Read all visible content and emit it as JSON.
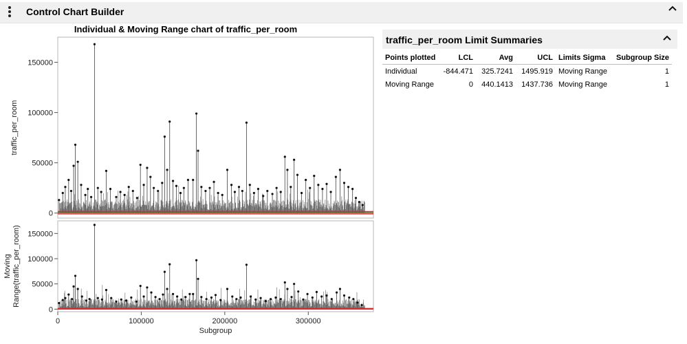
{
  "app": {
    "title": "Control Chart Builder",
    "menu_icon": "vertical-ellipsis-icon",
    "collapse_icon": "chevron-up-icon"
  },
  "chart_data": {
    "type": "line",
    "title": "Individual & Moving Range chart of traffic_per_room",
    "xlabel": "Subgroup",
    "xlim": [
      0,
      378000
    ],
    "xticks": [
      0,
      100000,
      200000,
      300000
    ],
    "panels": [
      {
        "name": "Individual",
        "ylabel": "traffic_per_room",
        "ylim": [
          -5000,
          175000
        ],
        "yticks": [
          0,
          50000,
          100000,
          150000
        ],
        "limits": {
          "lcl": -844.471,
          "avg": 325.7241,
          "ucl": 1495.919
        },
        "spikes": [
          {
            "x": 1500,
            "y": 13000
          },
          {
            "x": 6000,
            "y": 20000
          },
          {
            "x": 9000,
            "y": 26000
          },
          {
            "x": 13000,
            "y": 33000
          },
          {
            "x": 16000,
            "y": 22000
          },
          {
            "x": 19000,
            "y": 47000
          },
          {
            "x": 21000,
            "y": 68000
          },
          {
            "x": 24000,
            "y": 51000
          },
          {
            "x": 28000,
            "y": 28000
          },
          {
            "x": 33000,
            "y": 18000
          },
          {
            "x": 36000,
            "y": 24000
          },
          {
            "x": 40000,
            "y": 16000
          },
          {
            "x": 44000,
            "y": 168000
          },
          {
            "x": 48000,
            "y": 25000
          },
          {
            "x": 52000,
            "y": 21000
          },
          {
            "x": 58000,
            "y": 42000
          },
          {
            "x": 63000,
            "y": 24000
          },
          {
            "x": 70000,
            "y": 16000
          },
          {
            "x": 75000,
            "y": 21000
          },
          {
            "x": 80000,
            "y": 18000
          },
          {
            "x": 85000,
            "y": 26000
          },
          {
            "x": 90000,
            "y": 22000
          },
          {
            "x": 95000,
            "y": 15000
          },
          {
            "x": 99000,
            "y": 48000
          },
          {
            "x": 103000,
            "y": 28000
          },
          {
            "x": 107000,
            "y": 45000
          },
          {
            "x": 111000,
            "y": 36000
          },
          {
            "x": 115000,
            "y": 25000
          },
          {
            "x": 120000,
            "y": 22000
          },
          {
            "x": 125000,
            "y": 30000
          },
          {
            "x": 128000,
            "y": 76000
          },
          {
            "x": 131000,
            "y": 43000
          },
          {
            "x": 134000,
            "y": 91000
          },
          {
            "x": 138000,
            "y": 32000
          },
          {
            "x": 142000,
            "y": 27000
          },
          {
            "x": 147000,
            "y": 20000
          },
          {
            "x": 151000,
            "y": 25000
          },
          {
            "x": 156000,
            "y": 33000
          },
          {
            "x": 162000,
            "y": 33000
          },
          {
            "x": 166000,
            "y": 99000
          },
          {
            "x": 168000,
            "y": 62000
          },
          {
            "x": 172000,
            "y": 26000
          },
          {
            "x": 177000,
            "y": 22000
          },
          {
            "x": 182000,
            "y": 25000
          },
          {
            "x": 187000,
            "y": 31000
          },
          {
            "x": 192000,
            "y": 20000
          },
          {
            "x": 197000,
            "y": 18000
          },
          {
            "x": 203000,
            "y": 43000
          },
          {
            "x": 208000,
            "y": 28000
          },
          {
            "x": 212000,
            "y": 21000
          },
          {
            "x": 217000,
            "y": 26000
          },
          {
            "x": 221000,
            "y": 22000
          },
          {
            "x": 226000,
            "y": 90000
          },
          {
            "x": 230000,
            "y": 28000
          },
          {
            "x": 235000,
            "y": 20000
          },
          {
            "x": 240000,
            "y": 24000
          },
          {
            "x": 246000,
            "y": 17000
          },
          {
            "x": 251000,
            "y": 22000
          },
          {
            "x": 257000,
            "y": 19000
          },
          {
            "x": 262000,
            "y": 25000
          },
          {
            "x": 267000,
            "y": 21000
          },
          {
            "x": 272000,
            "y": 56000
          },
          {
            "x": 275000,
            "y": 43000
          },
          {
            "x": 279000,
            "y": 26000
          },
          {
            "x": 283000,
            "y": 53000
          },
          {
            "x": 287000,
            "y": 38000
          },
          {
            "x": 292000,
            "y": 20000
          },
          {
            "x": 297000,
            "y": 33000
          },
          {
            "x": 302000,
            "y": 25000
          },
          {
            "x": 307000,
            "y": 37000
          },
          {
            "x": 312000,
            "y": 28000
          },
          {
            "x": 317000,
            "y": 24000
          },
          {
            "x": 322000,
            "y": 29000
          },
          {
            "x": 327000,
            "y": 21000
          },
          {
            "x": 333000,
            "y": 36000
          },
          {
            "x": 338000,
            "y": 43000
          },
          {
            "x": 343000,
            "y": 30000
          },
          {
            "x": 348000,
            "y": 26000
          },
          {
            "x": 353000,
            "y": 24000
          },
          {
            "x": 357000,
            "y": 15000
          },
          {
            "x": 361000,
            "y": 11000
          },
          {
            "x": 365000,
            "y": 8000
          }
        ]
      },
      {
        "name": "Moving Range",
        "ylabel_lines": [
          "Moving",
          "Range(traffic_per_room)"
        ],
        "ylim": [
          -5000,
          175000
        ],
        "yticks": [
          0,
          50000,
          100000,
          150000
        ],
        "limits": {
          "lcl": 0,
          "avg": 440.1413,
          "ucl": 1437.736
        },
        "spikes": [
          {
            "x": 1500,
            "y": 12000
          },
          {
            "x": 6000,
            "y": 18000
          },
          {
            "x": 9000,
            "y": 22000
          },
          {
            "x": 13000,
            "y": 29000
          },
          {
            "x": 17000,
            "y": 20000
          },
          {
            "x": 19000,
            "y": 45000
          },
          {
            "x": 21000,
            "y": 66000
          },
          {
            "x": 24000,
            "y": 40000
          },
          {
            "x": 29000,
            "y": 25000
          },
          {
            "x": 34000,
            "y": 17000
          },
          {
            "x": 38000,
            "y": 20000
          },
          {
            "x": 44000,
            "y": 167000
          },
          {
            "x": 48000,
            "y": 22000
          },
          {
            "x": 53000,
            "y": 19000
          },
          {
            "x": 58000,
            "y": 38000
          },
          {
            "x": 64000,
            "y": 22000
          },
          {
            "x": 70000,
            "y": 15000
          },
          {
            "x": 76000,
            "y": 19000
          },
          {
            "x": 82000,
            "y": 17000
          },
          {
            "x": 88000,
            "y": 23000
          },
          {
            "x": 94000,
            "y": 15000
          },
          {
            "x": 99000,
            "y": 46000
          },
          {
            "x": 103000,
            "y": 25000
          },
          {
            "x": 107000,
            "y": 43000
          },
          {
            "x": 112000,
            "y": 33000
          },
          {
            "x": 117000,
            "y": 24000
          },
          {
            "x": 122000,
            "y": 20000
          },
          {
            "x": 126000,
            "y": 29000
          },
          {
            "x": 128000,
            "y": 74000
          },
          {
            "x": 131000,
            "y": 40000
          },
          {
            "x": 134000,
            "y": 89000
          },
          {
            "x": 138000,
            "y": 30000
          },
          {
            "x": 143000,
            "y": 25000
          },
          {
            "x": 148000,
            "y": 19000
          },
          {
            "x": 153000,
            "y": 24000
          },
          {
            "x": 158000,
            "y": 30000
          },
          {
            "x": 162000,
            "y": 30000
          },
          {
            "x": 166000,
            "y": 97000
          },
          {
            "x": 168000,
            "y": 60000
          },
          {
            "x": 172000,
            "y": 24000
          },
          {
            "x": 178000,
            "y": 20000
          },
          {
            "x": 184000,
            "y": 23000
          },
          {
            "x": 189000,
            "y": 28000
          },
          {
            "x": 195000,
            "y": 18000
          },
          {
            "x": 203000,
            "y": 40000
          },
          {
            "x": 209000,
            "y": 25000
          },
          {
            "x": 214000,
            "y": 20000
          },
          {
            "x": 219000,
            "y": 23000
          },
          {
            "x": 226000,
            "y": 88000
          },
          {
            "x": 231000,
            "y": 25000
          },
          {
            "x": 237000,
            "y": 19000
          },
          {
            "x": 243000,
            "y": 22000
          },
          {
            "x": 249000,
            "y": 16000
          },
          {
            "x": 255000,
            "y": 20000
          },
          {
            "x": 261000,
            "y": 23000
          },
          {
            "x": 267000,
            "y": 20000
          },
          {
            "x": 272000,
            "y": 53000
          },
          {
            "x": 275000,
            "y": 40000
          },
          {
            "x": 280000,
            "y": 24000
          },
          {
            "x": 283000,
            "y": 50000
          },
          {
            "x": 288000,
            "y": 35000
          },
          {
            "x": 294000,
            "y": 19000
          },
          {
            "x": 299000,
            "y": 30000
          },
          {
            "x": 305000,
            "y": 23000
          },
          {
            "x": 310000,
            "y": 34000
          },
          {
            "x": 316000,
            "y": 25000
          },
          {
            "x": 322000,
            "y": 27000
          },
          {
            "x": 328000,
            "y": 20000
          },
          {
            "x": 334000,
            "y": 33000
          },
          {
            "x": 338000,
            "y": 40000
          },
          {
            "x": 343000,
            "y": 27000
          },
          {
            "x": 349000,
            "y": 23000
          },
          {
            "x": 354000,
            "y": 20000
          },
          {
            "x": 359000,
            "y": 13000
          },
          {
            "x": 364000,
            "y": 8000
          }
        ]
      }
    ]
  },
  "limit_summary": {
    "title": "traffic_per_room Limit Summaries",
    "collapse_icon": "chevron-up-icon",
    "columns": [
      "Points plotted",
      "LCL",
      "Avg",
      "UCL",
      "Limits Sigma",
      "Subgroup Size"
    ],
    "rows": [
      [
        "Individual",
        "-844.471",
        "325.7241",
        "1495.919",
        "Moving Range",
        "1"
      ],
      [
        "Moving Range",
        "0",
        "440.1413",
        "1437.736",
        "Moving Range",
        "1"
      ]
    ]
  }
}
